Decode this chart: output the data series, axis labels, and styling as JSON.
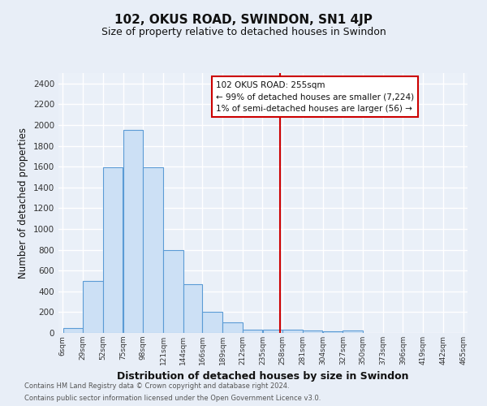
{
  "title": "102, OKUS ROAD, SWINDON, SN1 4JP",
  "subtitle": "Size of property relative to detached houses in Swindon",
  "xlabel": "Distribution of detached houses by size in Swindon",
  "ylabel": "Number of detached properties",
  "bin_edges": [
    6,
    29,
    52,
    75,
    98,
    121,
    144,
    166,
    189,
    212,
    235,
    258,
    281,
    304,
    327,
    350,
    373,
    396,
    419,
    442,
    465
  ],
  "bar_heights": [
    50,
    500,
    1590,
    1950,
    1590,
    800,
    470,
    200,
    100,
    30,
    30,
    30,
    20,
    15,
    20,
    0,
    0,
    0,
    0,
    0
  ],
  "bar_color": "#cce0f5",
  "bar_edge_color": "#5b9bd5",
  "vline_x": 255,
  "vline_color": "#cc0000",
  "annotation_title": "102 OKUS ROAD: 255sqm",
  "annotation_line1": "← 99% of detached houses are smaller (7,224)",
  "annotation_line2": "1% of semi-detached houses are larger (56) →",
  "ylim": [
    0,
    2500
  ],
  "yticks": [
    0,
    200,
    400,
    600,
    800,
    1000,
    1200,
    1400,
    1600,
    1800,
    2000,
    2200,
    2400
  ],
  "background_color": "#e8eef7",
  "plot_background_color": "#eaf0f8",
  "grid_color": "#d0d8e8",
  "footer_line1": "Contains HM Land Registry data © Crown copyright and database right 2024.",
  "footer_line2": "Contains public sector information licensed under the Open Government Licence v3.0."
}
